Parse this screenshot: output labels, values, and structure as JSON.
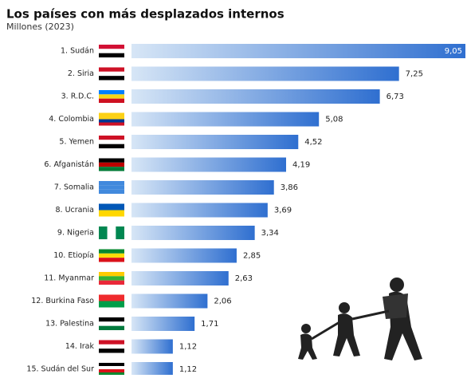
{
  "chart_data": {
    "type": "bar",
    "orientation": "horizontal",
    "title": "Los países con más desplazados internos",
    "subtitle": "Millones (2023)",
    "categories": [
      "1. Sudán",
      "2. Siria",
      "3. R.D.C.",
      "4. Colombia",
      "5. Yemen",
      "6. Afganistán",
      "7. Somalia",
      "8. Ucrania",
      "9. Nigeria",
      "10. Etiopía",
      "11. Myanmar",
      "12. Burkina Faso",
      "13. Palestina",
      "14. Irak",
      "15. Sudán del Sur"
    ],
    "values": [
      9.05,
      7.25,
      6.73,
      5.08,
      4.52,
      4.19,
      3.86,
      3.69,
      3.34,
      2.85,
      2.63,
      2.06,
      1.71,
      1.12,
      1.12
    ],
    "value_labels": [
      "9,05",
      "7,25",
      "6,73",
      "5,08",
      "4,52",
      "4,19",
      "3,86",
      "3,69",
      "3,34",
      "2,85",
      "2,63",
      "2,06",
      "1,71",
      "1,12",
      "1,12"
    ],
    "color": "#2f6fd0"
  }
}
